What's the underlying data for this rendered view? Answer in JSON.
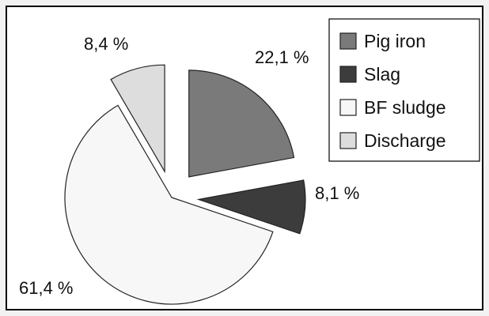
{
  "chart_data": {
    "type": "pie",
    "title": "",
    "categories": [
      "Pig iron",
      "Slag",
      "BF sludge",
      "Discharge"
    ],
    "values": [
      22.1,
      8.1,
      61.4,
      8.4
    ],
    "value_labels": [
      "22,1 %",
      "8,1 %",
      "61,4 %",
      "8,4 %"
    ],
    "colors": [
      "#7a7a7a",
      "#3c3c3c",
      "#f7f7f7",
      "#dddddd"
    ],
    "start_angle_deg": 0,
    "direction": "clockwise",
    "exploded": true,
    "legend": {
      "placement": "top-right",
      "entries": [
        "Pig iron",
        "Slag",
        "BF sludge",
        "Discharge"
      ]
    }
  }
}
